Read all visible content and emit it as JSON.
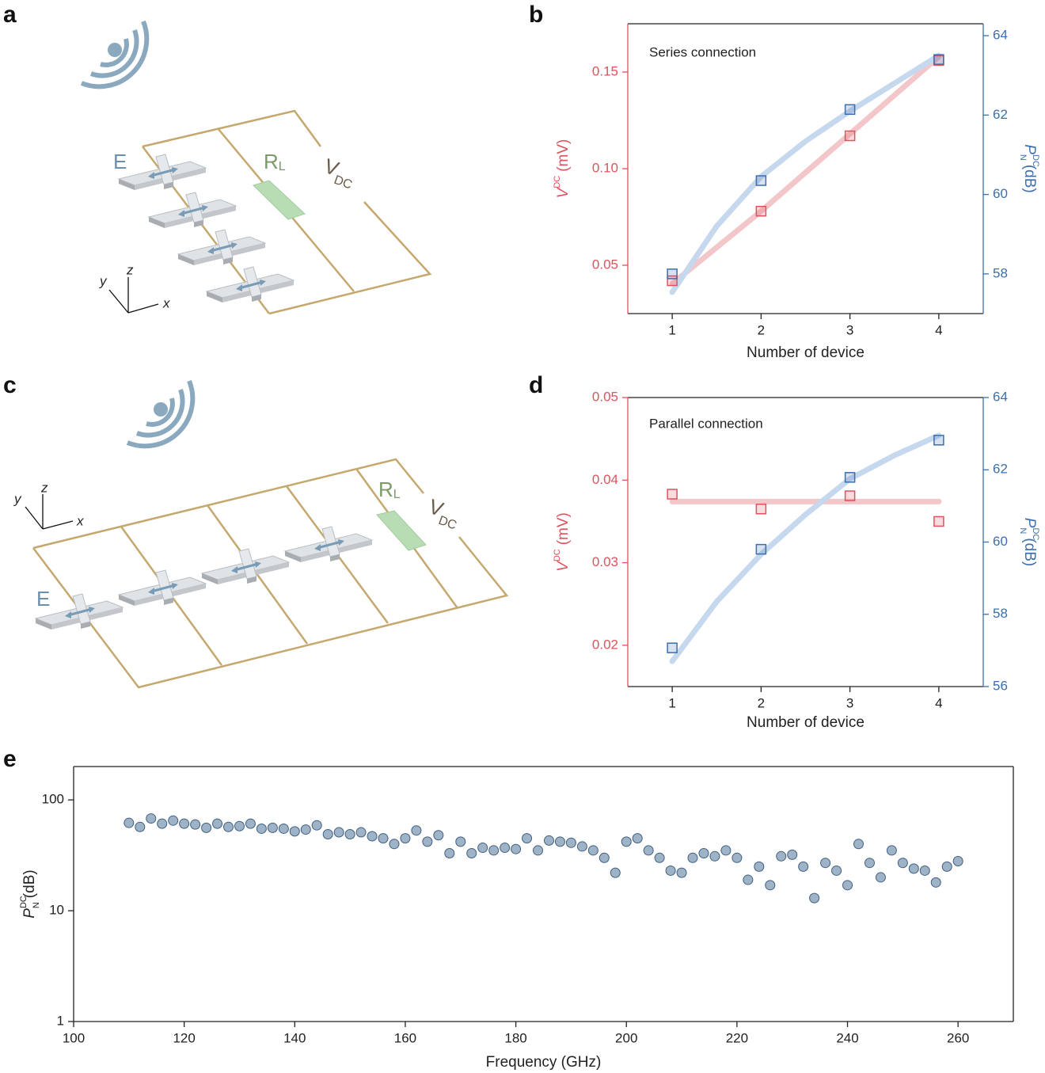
{
  "panels": [
    "a",
    "b",
    "c",
    "d",
    "e"
  ],
  "diagram_a": {
    "field": "E",
    "load": {
      "symbol": "R",
      "subscript": "L"
    },
    "voltage": {
      "symbol": "V",
      "subscript": "DC"
    },
    "axes": [
      "x",
      "y",
      "z"
    ]
  },
  "diagram_c": {
    "field": "E",
    "load": {
      "symbol": "R",
      "subscript": "L"
    },
    "voltage": {
      "symbol": "V",
      "subscript": "DC"
    },
    "axes": [
      "x",
      "y",
      "z"
    ]
  },
  "chart_data": [
    {
      "type": "scatter",
      "title": "Series connection",
      "xlabel": "Number of device",
      "ylabel": {
        "symbol": "V",
        "superscript": "DC",
        "unit": "(mV)"
      },
      "y2label": {
        "symbol": "P",
        "superscript": "DC",
        "subscript": "N",
        "unit": "(dB)"
      },
      "x": [
        1,
        2,
        3,
        4
      ],
      "xlim": [
        0.5,
        4.5
      ],
      "xticks": [
        1,
        2,
        3,
        4
      ],
      "ylim": [
        0.025,
        0.175
      ],
      "yticks": [
        0.05,
        {
          "value": 0.1,
          "label": "0.10"
        },
        0.15
      ],
      "y2lim": [
        57,
        64.3
      ],
      "y2ticks": [
        58,
        60,
        62,
        64
      ],
      "marker": "square",
      "series": [
        {
          "color": "#e0525d",
          "values": [
            0.042,
            0.078,
            0.117,
            0.156
          ],
          "fit": {
            "color": "#f3c6c9",
            "x": [
              1,
              2,
              3,
              4
            ],
            "values": [
              0.0405,
              0.078,
              0.118,
              0.158
            ]
          }
        },
        {
          "color": "#3b6fae",
          "axis": "y2",
          "values": [
            58.0,
            60.35,
            62.14,
            63.4
          ],
          "fit": {
            "color": "#c6d8ee",
            "x": [
              1,
              1.5,
              2,
              2.5,
              3,
              3.5,
              4
            ],
            "values": [
              57.54,
              59.2,
              60.45,
              61.34,
              62.1,
              62.8,
              63.5
            ]
          }
        }
      ]
    },
    {
      "type": "scatter",
      "title": "Parallel connection",
      "xlabel": "Number of device",
      "ylabel": {
        "symbol": "V",
        "superscript": "DC",
        "unit": "(mV)"
      },
      "y2label": {
        "symbol": "P",
        "superscript": "DC",
        "subscript": "N",
        "unit": "(dB)"
      },
      "x": [
        1,
        2,
        3,
        4
      ],
      "xlim": [
        0.5,
        4.5
      ],
      "xticks": [
        1,
        2,
        3,
        4
      ],
      "ylim": [
        0.015,
        0.05
      ],
      "yticks": [
        0.02,
        0.03,
        0.04,
        0.05
      ],
      "y2lim": [
        56,
        64
      ],
      "y2ticks": [
        56,
        58,
        60,
        62,
        64
      ],
      "marker": "square",
      "series": [
        {
          "color": "#e0525d",
          "values": [
            0.0383,
            0.0365,
            0.0381,
            0.035
          ],
          "fit": {
            "color": "#f3c6c9",
            "x": [
              1,
              4
            ],
            "values": [
              0.0374,
              0.0374
            ]
          }
        },
        {
          "color": "#3b6fae",
          "axis": "y2",
          "values": [
            57.07,
            59.8,
            61.79,
            62.82
          ],
          "fit": {
            "color": "#c6d8ee",
            "x": [
              1,
              1.5,
              2,
              2.5,
              3,
              3.5,
              4
            ],
            "values": [
              56.7,
              58.35,
              59.66,
              60.76,
              61.75,
              62.4,
              62.95
            ]
          }
        }
      ]
    },
    {
      "type": "scatter",
      "xlabel": "Frequency (GHz)",
      "ylabel": {
        "symbol": "P",
        "superscript": "DC",
        "subscript": "N",
        "unit": "(dB)"
      },
      "ylog": true,
      "xlim": [
        100,
        270
      ],
      "xticks": [
        100,
        120,
        140,
        160,
        180,
        200,
        220,
        240,
        260
      ],
      "ylim": [
        1,
        200
      ],
      "yticks": [
        1,
        10,
        100
      ],
      "marker": "circle",
      "x": [
        110,
        112,
        114,
        116,
        118,
        120,
        122,
        124,
        126,
        128,
        130,
        132,
        134,
        136,
        138,
        140,
        142,
        144,
        146,
        148,
        150,
        152,
        154,
        156,
        158,
        160,
        162,
        164,
        166,
        168,
        170,
        172,
        174,
        176,
        178,
        180,
        182,
        184,
        186,
        188,
        190,
        192,
        194,
        196,
        198,
        200,
        202,
        204,
        206,
        208,
        210,
        212,
        214,
        216,
        218,
        220,
        222,
        224,
        226,
        228,
        230,
        232,
        234,
        236,
        238,
        240,
        242,
        244,
        246,
        248,
        250,
        252,
        254,
        256,
        258,
        260
      ],
      "series": [
        {
          "color": "#3f5f80",
          "fill": "#9fb3c7",
          "values": [
            62,
            57,
            68,
            61,
            65,
            61,
            60,
            56,
            61,
            57,
            58,
            61,
            55,
            56,
            55,
            52,
            54,
            59,
            49,
            51,
            49,
            51,
            47,
            45,
            40,
            45,
            53,
            42,
            48,
            33,
            42,
            33,
            37,
            35,
            37,
            36,
            45,
            35,
            43,
            42,
            41,
            38,
            35,
            30,
            22,
            42,
            45,
            35,
            30,
            23,
            22,
            30,
            33,
            31,
            35,
            30,
            19,
            25,
            17,
            31,
            32,
            25,
            13,
            27,
            23,
            17,
            40,
            27,
            20,
            35,
            27,
            24,
            23,
            18,
            25,
            28
          ]
        }
      ]
    }
  ]
}
